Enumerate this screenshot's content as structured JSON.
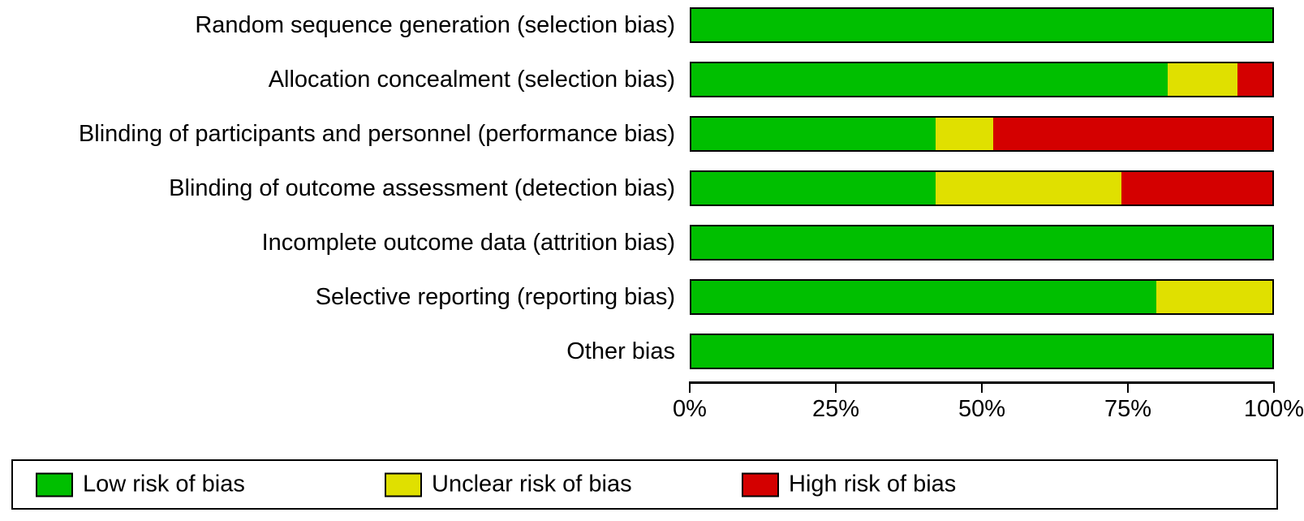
{
  "chart": {
    "type": "stacked-horizontal-bar",
    "background_color": "#ffffff",
    "border_color": "#000000",
    "label_fontsize": 29,
    "axis_fontsize": 29,
    "legend_fontsize": 29,
    "rows": [
      {
        "label": "Random sequence generation (selection bias)",
        "low": 100,
        "unclear": 0,
        "high": 0
      },
      {
        "label": "Allocation concealment (selection bias)",
        "low": 82,
        "unclear": 12,
        "high": 6
      },
      {
        "label": "Blinding of participants and personnel (performance bias)",
        "low": 42,
        "unclear": 10,
        "high": 48
      },
      {
        "label": "Blinding of outcome assessment (detection bias)",
        "low": 42,
        "unclear": 32,
        "high": 26
      },
      {
        "label": "Incomplete outcome data (attrition bias)",
        "low": 100,
        "unclear": 0,
        "high": 0
      },
      {
        "label": "Selective reporting (reporting bias)",
        "low": 80,
        "unclear": 20,
        "high": 0
      },
      {
        "label": "Other bias",
        "low": 100,
        "unclear": 0,
        "high": 0
      }
    ],
    "colors": {
      "low": "#00bf00",
      "unclear": "#e0e000",
      "high": "#d40000"
    },
    "axis": {
      "min": 0,
      "max": 100,
      "ticks": [
        0,
        25,
        50,
        75,
        100
      ],
      "tick_labels": [
        "0%",
        "25%",
        "50%",
        "75%",
        "100%"
      ]
    },
    "legend": [
      {
        "key": "low",
        "label": "Low risk of bias"
      },
      {
        "key": "unclear",
        "label": "Unclear risk of bias"
      },
      {
        "key": "high",
        "label": "High risk of bias"
      }
    ]
  }
}
